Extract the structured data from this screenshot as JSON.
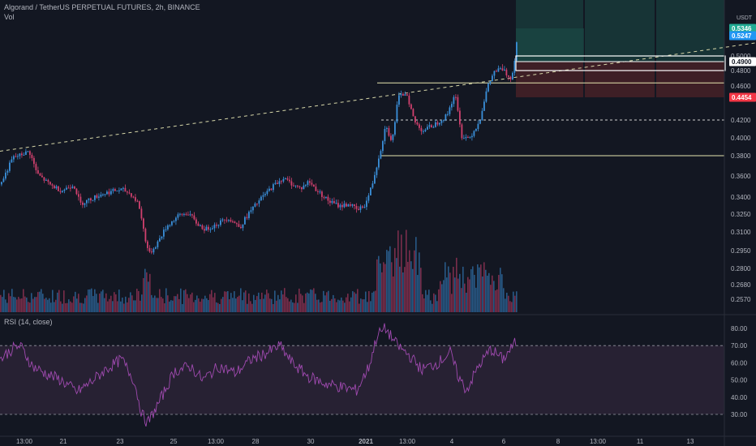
{
  "header": {
    "symbol_line": "Algorand / TetherUS PERPETUAL FUTURES, 2h, BINANCE",
    "volume_label": "Vol",
    "currency": "USDT"
  },
  "rsi_panel": {
    "label": "RSI (14, close)"
  },
  "colors": {
    "background": "#131722",
    "up": "#3a8fd9",
    "down": "#d0406e",
    "rsi_line": "#a04ab0",
    "rsi_band": "#2a2235",
    "green_badge": "#22ab94",
    "red_badge": "#f23645",
    "target_zone": "#1b4d47",
    "stop_zone": "#4a2228"
  },
  "chart_data": [
    {
      "type": "candlestick",
      "title": "Algorand / TetherUS PERPETUAL FUTURES, 2h, BINANCE",
      "y_ticks": [
        "0.5000",
        "0.4800",
        "0.4600",
        "0.4200",
        "0.4000",
        "0.3800",
        "0.3600",
        "0.3400",
        "0.3250",
        "0.3100",
        "0.2950",
        "0.2800",
        "0.2680",
        "0.2570"
      ],
      "x_ticks": [
        "13:00",
        "21",
        "23",
        "25",
        "13:00",
        "28",
        "30",
        "2021",
        "13:00",
        "4",
        "6",
        "8",
        "13:00",
        "11",
        "13"
      ],
      "price_labels": [
        {
          "value": "0.5346",
          "kind": "green"
        },
        {
          "value": "0.5247",
          "kind": "blue"
        },
        {
          "value": "0.4900",
          "kind": "white"
        },
        {
          "value": "0.4454",
          "kind": "red"
        }
      ],
      "horizontal_levels": [
        0.464,
        0.42,
        0.38
      ],
      "position": {
        "entry": 0.49,
        "target": 0.5346,
        "stop": 0.4454
      },
      "trendline": {
        "from": [
          0,
          0.385
        ],
        "to": [
          932,
          0.516
        ]
      },
      "anchors": [
        [
          0,
          0.352
        ],
        [
          15,
          0.378
        ],
        [
          25,
          0.381
        ],
        [
          35,
          0.385
        ],
        [
          45,
          0.362
        ],
        [
          60,
          0.352
        ],
        [
          75,
          0.346
        ],
        [
          90,
          0.352
        ],
        [
          98,
          0.334
        ],
        [
          110,
          0.338
        ],
        [
          125,
          0.343
        ],
        [
          140,
          0.346
        ],
        [
          150,
          0.347
        ],
        [
          160,
          0.343
        ],
        [
          170,
          0.334
        ],
        [
          178,
          0.305
        ],
        [
          183,
          0.292
        ],
        [
          192,
          0.3
        ],
        [
          205,
          0.315
        ],
        [
          220,
          0.324
        ],
        [
          232,
          0.326
        ],
        [
          240,
          0.318
        ],
        [
          252,
          0.312
        ],
        [
          265,
          0.316
        ],
        [
          280,
          0.322
        ],
        [
          295,
          0.314
        ],
        [
          305,
          0.325
        ],
        [
          320,
          0.338
        ],
        [
          335,
          0.35
        ],
        [
          348,
          0.358
        ],
        [
          360,
          0.352
        ],
        [
          370,
          0.348
        ],
        [
          380,
          0.355
        ],
        [
          390,
          0.346
        ],
        [
          405,
          0.336
        ],
        [
          418,
          0.332
        ],
        [
          430,
          0.334
        ],
        [
          440,
          0.328
        ],
        [
          450,
          0.334
        ],
        [
          458,
          0.352
        ],
        [
          468,
          0.385
        ],
        [
          475,
          0.416
        ],
        [
          482,
          0.393
        ],
        [
          490,
          0.445
        ],
        [
          500,
          0.452
        ],
        [
          510,
          0.418
        ],
        [
          520,
          0.408
        ],
        [
          535,
          0.415
        ],
        [
          550,
          0.425
        ],
        [
          560,
          0.45
        ],
        [
          568,
          0.402
        ],
        [
          578,
          0.4
        ],
        [
          590,
          0.418
        ],
        [
          600,
          0.458
        ],
        [
          608,
          0.478
        ],
        [
          618,
          0.482
        ],
        [
          628,
          0.47
        ],
        [
          632,
          0.48
        ],
        [
          636,
          0.518
        ]
      ],
      "volume_peaks": [
        [
          0,
          0.1
        ],
        [
          180,
          0.6
        ],
        [
          470,
          1.0
        ],
        [
          490,
          0.8
        ],
        [
          600,
          0.7
        ],
        [
          636,
          0.9
        ]
      ],
      "rsi_anchors": [
        [
          0,
          62
        ],
        [
          15,
          68
        ],
        [
          25,
          70
        ],
        [
          40,
          58
        ],
        [
          55,
          54
        ],
        [
          75,
          50
        ],
        [
          95,
          43
        ],
        [
          110,
          48
        ],
        [
          130,
          56
        ],
        [
          150,
          62
        ],
        [
          165,
          50
        ],
        [
          175,
          30
        ],
        [
          182,
          25
        ],
        [
          195,
          36
        ],
        [
          215,
          55
        ],
        [
          235,
          58
        ],
        [
          250,
          50
        ],
        [
          270,
          58
        ],
        [
          290,
          54
        ],
        [
          310,
          62
        ],
        [
          330,
          66
        ],
        [
          345,
          70
        ],
        [
          360,
          60
        ],
        [
          380,
          52
        ],
        [
          400,
          48
        ],
        [
          420,
          46
        ],
        [
          440,
          44
        ],
        [
          455,
          58
        ],
        [
          465,
          76
        ],
        [
          475,
          80
        ],
        [
          490,
          70
        ],
        [
          505,
          64
        ],
        [
          520,
          56
        ],
        [
          540,
          60
        ],
        [
          555,
          66
        ],
        [
          565,
          52
        ],
        [
          575,
          44
        ],
        [
          590,
          58
        ],
        [
          605,
          68
        ],
        [
          620,
          62
        ],
        [
          636,
          72
        ]
      ],
      "rsi_ticks": [
        "80.00",
        "70.00",
        "60.00",
        "50.00",
        "40.00",
        "30.00"
      ],
      "rsi_bands": [
        70,
        30
      ]
    }
  ]
}
